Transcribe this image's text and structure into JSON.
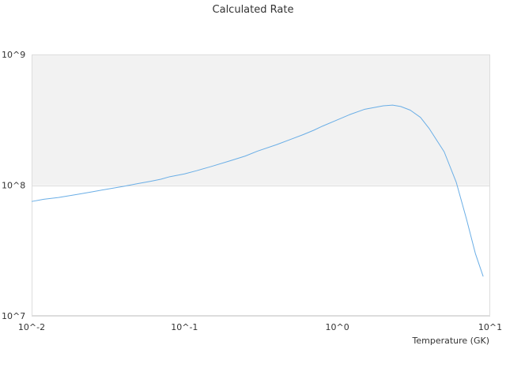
{
  "chart_data": {
    "type": "line",
    "title": "Calculated Rate",
    "xlabel": "Temperature (GK)",
    "ylabel": "",
    "xscale": "log",
    "yscale": "log",
    "xlim": [
      0.01,
      10
    ],
    "ylim": [
      10000000,
      1000000000
    ],
    "x_tick_values": [
      0.01,
      0.1,
      1,
      10
    ],
    "x_tick_labels": [
      "10^-2",
      "10^-1",
      "10^0",
      "10^1"
    ],
    "y_tick_values": [
      10000000,
      100000000,
      1000000000
    ],
    "y_tick_labels": [
      "10^7",
      "10^8",
      "10^9"
    ],
    "grid": true,
    "shaded_band": {
      "y_from": 100000000,
      "y_to": 1000000000,
      "color": "#f2f2f2"
    },
    "colors": {
      "line": "#6aaee6",
      "grid": "#dddddd",
      "plot_border": "#dddddd",
      "text": "#333333"
    },
    "series": [
      {
        "x": [
          0.01,
          0.012,
          0.015,
          0.02,
          0.025,
          0.03,
          0.04,
          0.05,
          0.06,
          0.07,
          0.08,
          0.1,
          0.12,
          0.15,
          0.2,
          0.25,
          0.3,
          0.4,
          0.5,
          0.6,
          0.7,
          0.8,
          1.0,
          1.2,
          1.5,
          2.0,
          2.3,
          2.6,
          3.0,
          3.5,
          4.0,
          5.0,
          6.0,
          7.0,
          8.0,
          9.0
        ],
        "values": [
          75000000,
          78000000,
          80500000,
          85000000,
          89000000,
          92500000,
          98000000,
          103000000,
          107000000,
          111000000,
          116000000,
          122000000,
          129000000,
          139000000,
          154000000,
          167000000,
          182000000,
          204000000,
          225000000,
          244000000,
          263000000,
          283000000,
          316000000,
          346000000,
          380000000,
          405000000,
          410000000,
          400000000,
          375000000,
          330000000,
          270000000,
          180000000,
          105000000,
          55000000,
          30000000,
          20000000
        ]
      }
    ]
  }
}
